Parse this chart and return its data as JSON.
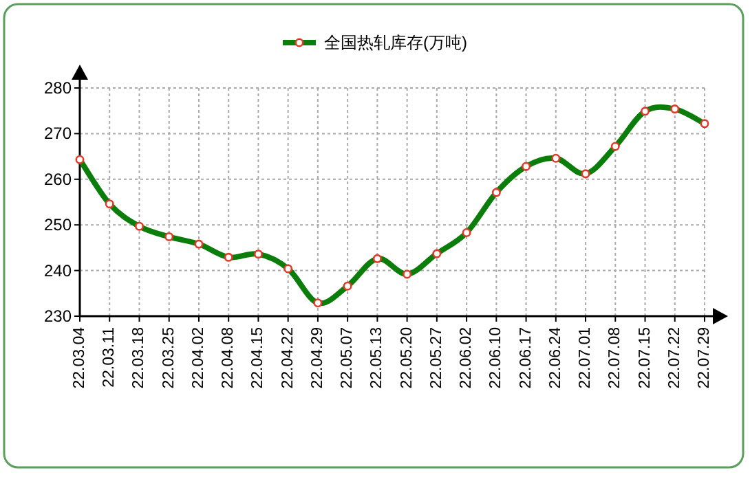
{
  "chart_data": {
    "type": "line",
    "categories": [
      "22.03.04",
      "22.03.11",
      "22.03.18",
      "22.03.25",
      "22.04.02",
      "22.04.08",
      "22.04.15",
      "22.04.22",
      "22.04.29",
      "22.05.07",
      "22.05.13",
      "22.05.20",
      "22.05.27",
      "22.06.02",
      "22.06.10",
      "22.06.17",
      "22.06.24",
      "22.07.01",
      "22.07.08",
      "22.07.15",
      "22.07.22",
      "22.07.29"
    ],
    "series": [
      {
        "name": "全国热轧库存(万吨)",
        "color": "#0a7d0a",
        "values": [
          264.3,
          254.6,
          249.7,
          247.4,
          245.8,
          242.9,
          243.6,
          240.4,
          232.9,
          236.6,
          242.6,
          239.2,
          243.7,
          248.3,
          257.1,
          262.8,
          264.6,
          261.2,
          267.2,
          274.9,
          275.4,
          272.2
        ]
      }
    ],
    "ylim": [
      230,
      280
    ],
    "yticks": [
      230,
      240,
      250,
      260,
      270,
      280
    ],
    "grid": true,
    "legend": "top",
    "marker": "circle",
    "line_style": "solid"
  }
}
